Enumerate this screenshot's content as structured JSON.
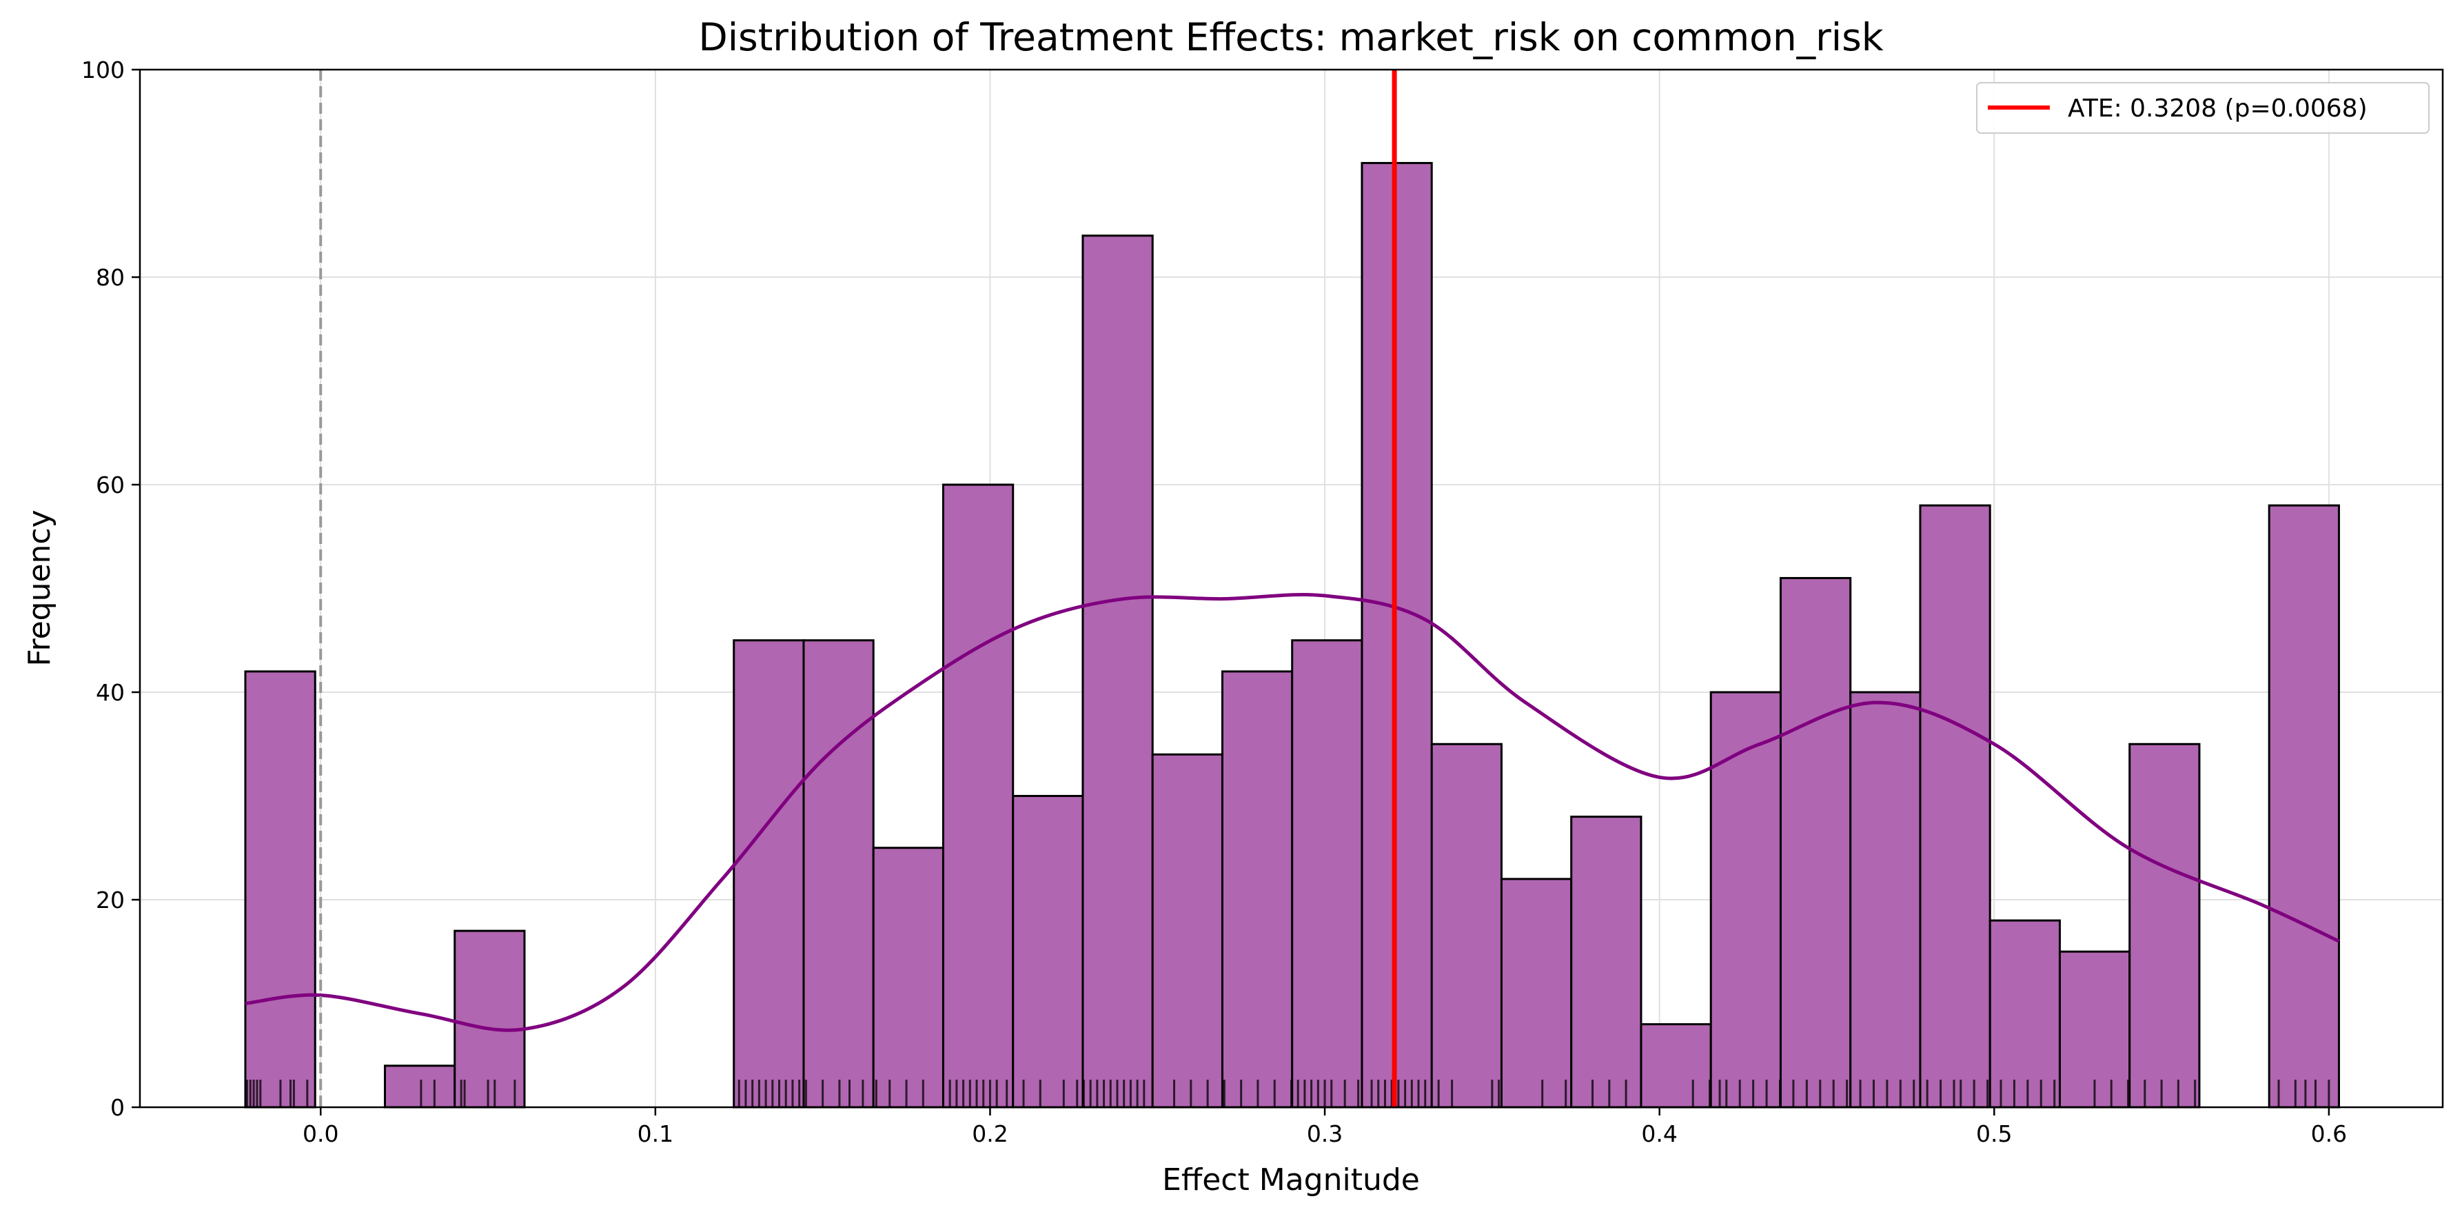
{
  "chart_data": {
    "type": "histogram",
    "title": "Distribution of Treatment Effects: market_risk on common_risk",
    "xlabel": "Effect Magnitude",
    "ylabel": "Frequency",
    "xlim": [
      -0.054,
      0.634
    ],
    "ylim": [
      0,
      100
    ],
    "x_ticks": [
      0.0,
      0.1,
      0.2,
      0.3,
      0.4,
      0.5,
      0.6
    ],
    "x_tick_labels": [
      "0.0",
      "0.1",
      "0.2",
      "0.3",
      "0.4",
      "0.5",
      "0.6"
    ],
    "y_ticks": [
      0,
      20,
      40,
      60,
      80,
      100
    ],
    "y_tick_labels": [
      "0",
      "20",
      "40",
      "60",
      "80",
      "100"
    ],
    "grid": true,
    "bins": {
      "start": -0.0225,
      "width": 0.02085,
      "counts": [
        42,
        0,
        4,
        17,
        0,
        0,
        0,
        45,
        45,
        25,
        60,
        30,
        84,
        34,
        42,
        45,
        91,
        35,
        22,
        28,
        8,
        40,
        51,
        40,
        58,
        18,
        15,
        35,
        0,
        58
      ]
    },
    "kde": {
      "x": [
        -0.0225,
        0.0,
        0.03,
        0.06,
        0.09,
        0.12,
        0.15,
        0.18,
        0.21,
        0.24,
        0.27,
        0.3,
        0.33,
        0.36,
        0.4,
        0.43,
        0.465,
        0.5,
        0.54,
        0.58,
        0.603
      ],
      "y": [
        10,
        10.8,
        9.0,
        7.5,
        11.5,
        22.0,
        33.5,
        41.0,
        46.5,
        49.0,
        49.0,
        49.3,
        47.0,
        39.0,
        31.8,
        35.0,
        39.0,
        35.0,
        25.0,
        19.5,
        16.0
      ]
    },
    "rug_x": [
      -0.022,
      -0.021,
      -0.02,
      -0.019,
      -0.018,
      -0.012,
      -0.009,
      -0.008,
      -0.004,
      0.03,
      0.034,
      0.042,
      0.043,
      0.05,
      0.052,
      0.058,
      0.125,
      0.127,
      0.129,
      0.131,
      0.133,
      0.135,
      0.137,
      0.139,
      0.141,
      0.143,
      0.145,
      0.15,
      0.155,
      0.158,
      0.162,
      0.166,
      0.17,
      0.175,
      0.18,
      0.188,
      0.19,
      0.192,
      0.194,
      0.196,
      0.198,
      0.2,
      0.202,
      0.205,
      0.21,
      0.215,
      0.222,
      0.226,
      0.228,
      0.23,
      0.232,
      0.234,
      0.236,
      0.238,
      0.24,
      0.242,
      0.244,
      0.246,
      0.255,
      0.26,
      0.265,
      0.27,
      0.275,
      0.28,
      0.285,
      0.29,
      0.292,
      0.294,
      0.296,
      0.298,
      0.3,
      0.302,
      0.306,
      0.31,
      0.314,
      0.316,
      0.318,
      0.32,
      0.322,
      0.324,
      0.326,
      0.328,
      0.33,
      0.334,
      0.338,
      0.35,
      0.352,
      0.365,
      0.372,
      0.38,
      0.385,
      0.39,
      0.41,
      0.415,
      0.418,
      0.42,
      0.424,
      0.428,
      0.432,
      0.436,
      0.44,
      0.444,
      0.448,
      0.452,
      0.456,
      0.46,
      0.464,
      0.468,
      0.472,
      0.476,
      0.48,
      0.484,
      0.488,
      0.49,
      0.494,
      0.498,
      0.502,
      0.506,
      0.51,
      0.514,
      0.518,
      0.53,
      0.535,
      0.54,
      0.545,
      0.55,
      0.555,
      0.56,
      0.585,
      0.59,
      0.593,
      0.596,
      0.6,
      0.603
    ],
    "ate_value": 0.3208,
    "zero_line_x": 0.0,
    "legend": {
      "label": "ATE: 0.3208 (p=0.0068)",
      "position": "top-right"
    },
    "colors": {
      "bar_fill": "#b066b0",
      "bar_edge": "#000000",
      "kde_line": "#800080",
      "ate_line": "#ff0000",
      "zero_line": "#999999",
      "rug": "#000000",
      "grid": "#e0e0e0"
    }
  }
}
